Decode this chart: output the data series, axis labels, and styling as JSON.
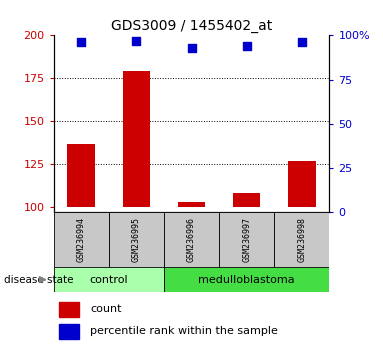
{
  "title": "GDS3009 / 1455402_at",
  "samples": [
    "GSM236994",
    "GSM236995",
    "GSM236996",
    "GSM236997",
    "GSM236998"
  ],
  "count_values": [
    137,
    179,
    103,
    108,
    127
  ],
  "percentile_values": [
    96,
    97,
    93,
    94,
    96
  ],
  "ylim_left": [
    97,
    200
  ],
  "ylim_right": [
    0,
    100
  ],
  "yticks_left": [
    100,
    125,
    150,
    175,
    200
  ],
  "yticks_right": [
    0,
    25,
    50,
    75,
    100
  ],
  "bar_color": "#CC0000",
  "dot_color": "#0000CC",
  "bar_width": 0.5,
  "left_axis_color": "#CC0000",
  "right_axis_color": "#0000CC",
  "sample_bg_color": "#C8C8C8",
  "control_color": "#AAFFAA",
  "medulloblastoma_color": "#44DD44",
  "disease_state_label": "disease state",
  "legend_count_label": "count",
  "legend_percentile_label": "percentile rank within the sample",
  "dotted_grid_values": [
    125,
    150,
    175
  ],
  "base_value": 97,
  "n_control": 2,
  "n_medulloblastoma": 3
}
